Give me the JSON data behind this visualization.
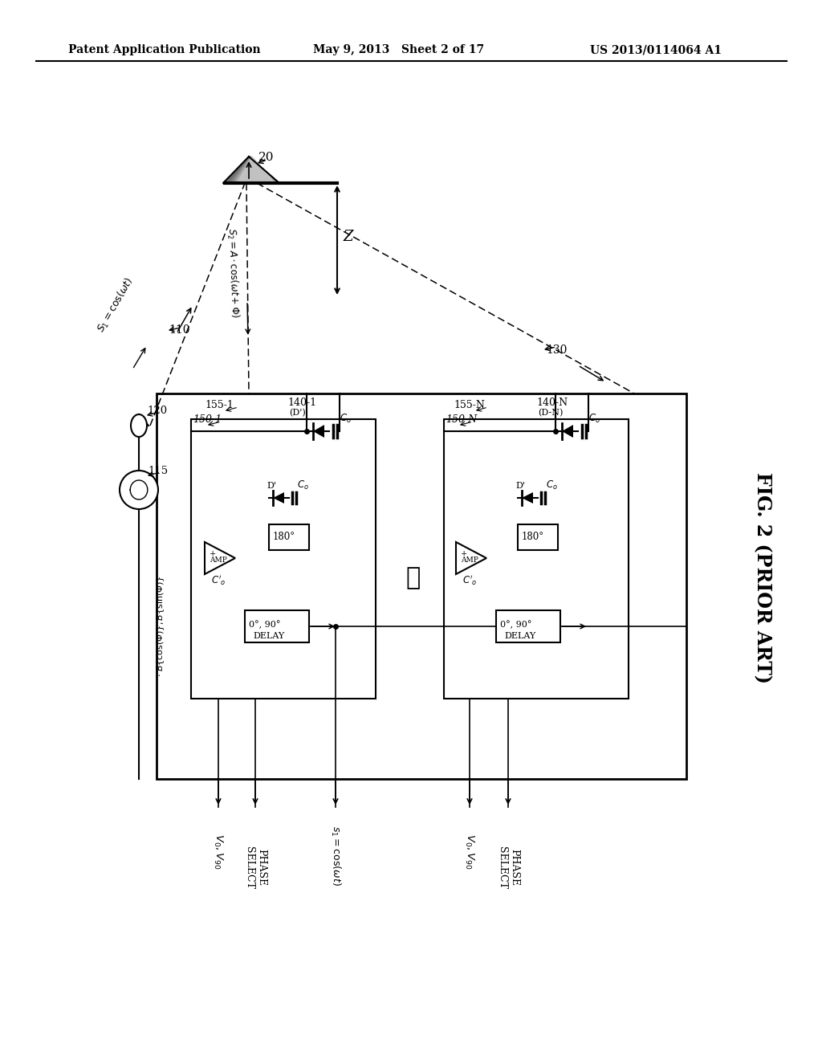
{
  "bg_color": "#ffffff",
  "header_left": "Patent Application Publication",
  "header_center": "May 9, 2013   Sheet 2 of 17",
  "header_right": "US 2013/0114064 A1",
  "fig_label": "FIG. 2 (PRIOR ART)"
}
